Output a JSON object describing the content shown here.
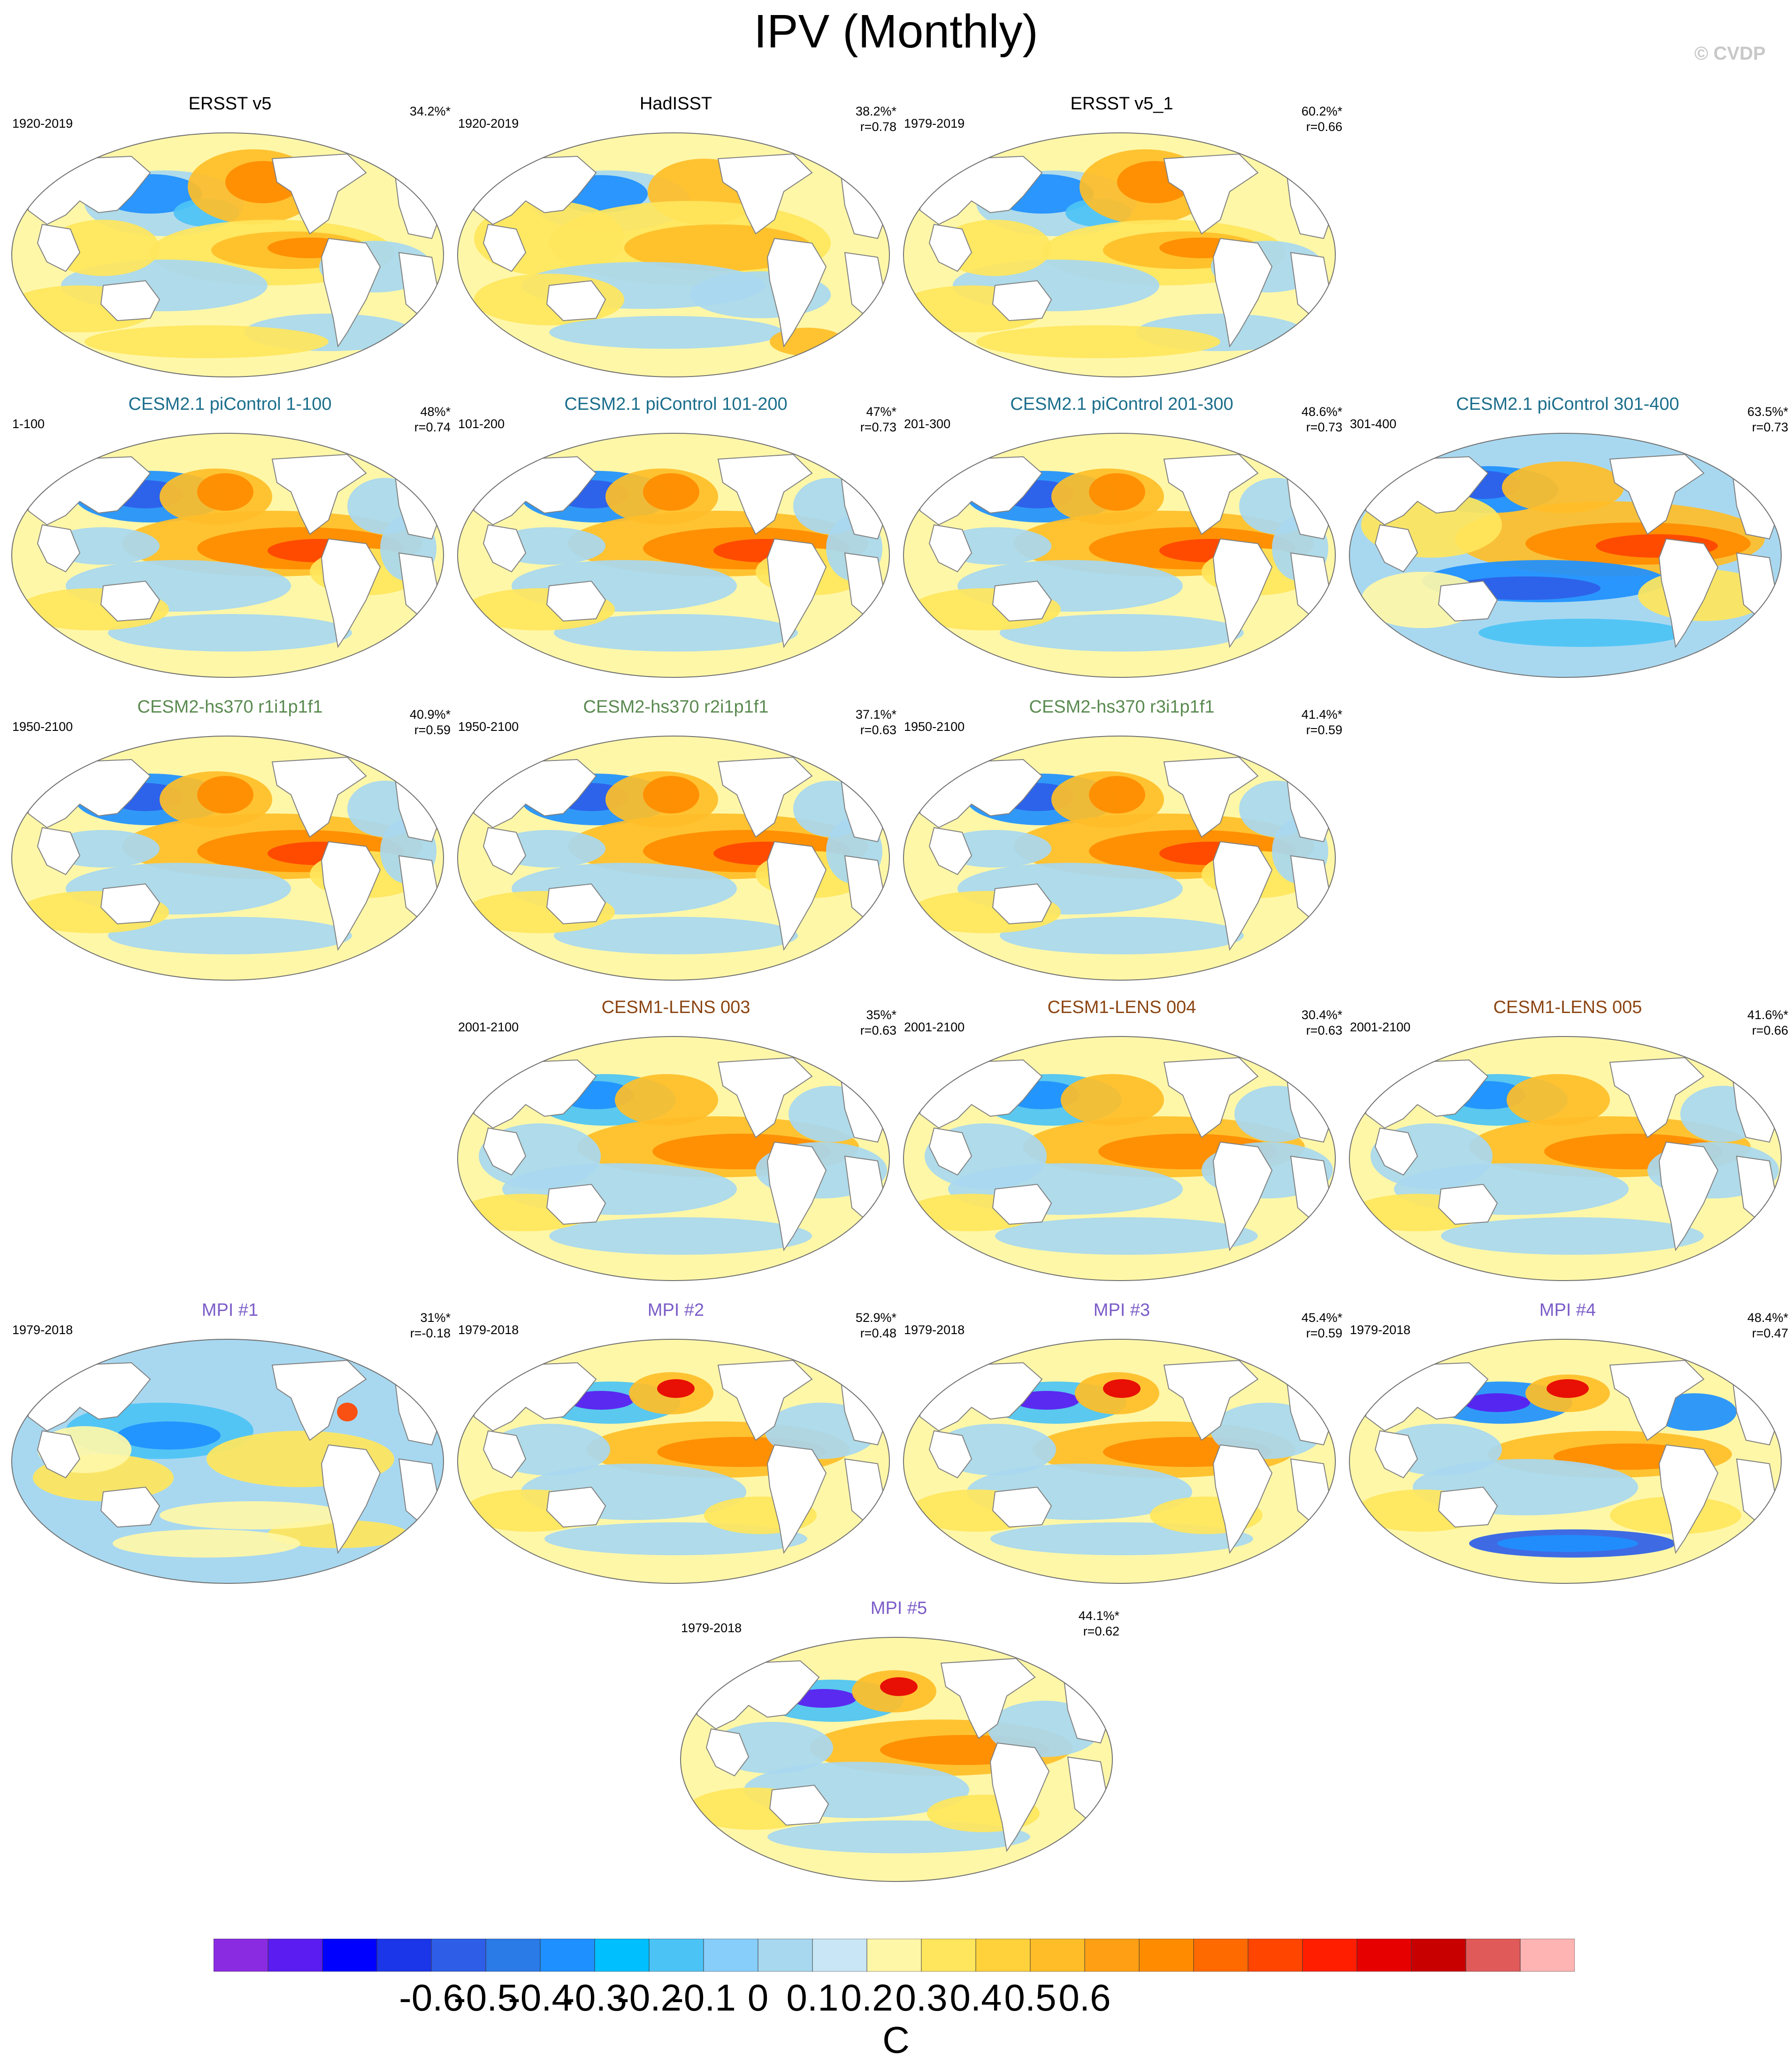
{
  "title": "IPV (Monthly)",
  "copyright": "© CVDP",
  "units": "C",
  "colorbar": {
    "labels": [
      "-0.6",
      "-0.5",
      "-0.4",
      "-0.3",
      "-0.2",
      "-0.1",
      "0",
      "0.1",
      "0.2",
      "0.3",
      "0.4",
      "0.5",
      "0.6"
    ],
    "colors": [
      "#8a2be2",
      "#5a1cf0",
      "#0000ff",
      "#1b35e8",
      "#2e5ee8",
      "#2a7ae8",
      "#1e90ff",
      "#00bfff",
      "#4cc3f5",
      "#87cefa",
      "#a8d8f0",
      "#c8e6f5",
      "#fff7a8",
      "#ffe65c",
      "#ffd23c",
      "#ffbe28",
      "#ffa014",
      "#ff8c00",
      "#ff6a00",
      "#ff4500",
      "#ff1e00",
      "#e60000",
      "#c80000",
      "#e05a5a",
      "#ffb4b4"
    ]
  },
  "panels": [
    {
      "title": "ERSST v5",
      "color": "#000000",
      "period": "1920-2019",
      "pct": "34.2%*",
      "r": "",
      "style": 0
    },
    {
      "title": "HadISST",
      "color": "#000000",
      "period": "1920-2019",
      "pct": "38.2%*",
      "r": "r=0.78",
      "style": 1
    },
    {
      "title": "ERSST v5_1",
      "color": "#000000",
      "period": "1979-2019",
      "pct": "60.2%*",
      "r": "r=0.66",
      "style": 0
    },
    {
      "title": "CESM2.1 piControl 1-100",
      "color": "#1b6e8c",
      "period": "1-100",
      "pct": "48%*",
      "r": "r=0.74",
      "style": 2
    },
    {
      "title": "CESM2.1 piControl 101-200",
      "color": "#1b6e8c",
      "period": "101-200",
      "pct": "47%*",
      "r": "r=0.73",
      "style": 2
    },
    {
      "title": "CESM2.1 piControl 201-300",
      "color": "#1b6e8c",
      "period": "201-300",
      "pct": "48.6%*",
      "r": "r=0.73",
      "style": 2
    },
    {
      "title": "CESM2.1 piControl 301-400",
      "color": "#1b6e8c",
      "period": "301-400",
      "pct": "63.5%*",
      "r": "r=0.73",
      "style": 3
    },
    {
      "title": "CESM2-hs370 r1i1p1f1",
      "color": "#5a8a50",
      "period": "1950-2100",
      "pct": "40.9%*",
      "r": "r=0.59",
      "style": 2
    },
    {
      "title": "CESM2-hs370 r2i1p1f1",
      "color": "#5a8a50",
      "period": "1950-2100",
      "pct": "37.1%*",
      "r": "r=0.63",
      "style": 2
    },
    {
      "title": "CESM2-hs370 r3i1p1f1",
      "color": "#5a8a50",
      "period": "1950-2100",
      "pct": "41.4%*",
      "r": "r=0.59",
      "style": 2
    },
    {
      "title": "CESM1-LENS 003",
      "color": "#8b4513",
      "period": "2001-2100",
      "pct": "35%*",
      "r": "r=0.63",
      "style": 4
    },
    {
      "title": "CESM1-LENS 004",
      "color": "#8b4513",
      "period": "2001-2100",
      "pct": "30.4%*",
      "r": "r=0.63",
      "style": 4
    },
    {
      "title": "CESM1-LENS 005",
      "color": "#8b4513",
      "period": "2001-2100",
      "pct": "41.6%*",
      "r": "r=0.66",
      "style": 4
    },
    {
      "title": "MPI #1",
      "color": "#7b5cc8",
      "period": "1979-2018",
      "pct": "31%*",
      "r": "r=-0.18",
      "style": 5
    },
    {
      "title": "MPI #2",
      "color": "#7b5cc8",
      "period": "1979-2018",
      "pct": "52.9%*",
      "r": "r=0.48",
      "style": 6
    },
    {
      "title": "MPI #3",
      "color": "#7b5cc8",
      "period": "1979-2018",
      "pct": "45.4%*",
      "r": "r=0.59",
      "style": 6
    },
    {
      "title": "MPI #4",
      "color": "#7b5cc8",
      "period": "1979-2018",
      "pct": "48.4%*",
      "r": "r=0.47",
      "style": 7
    },
    {
      "title": "MPI #5",
      "color": "#7b5cc8",
      "period": "1979-2018",
      "pct": "44.1%*",
      "r": "r=0.62",
      "style": 6
    }
  ]
}
